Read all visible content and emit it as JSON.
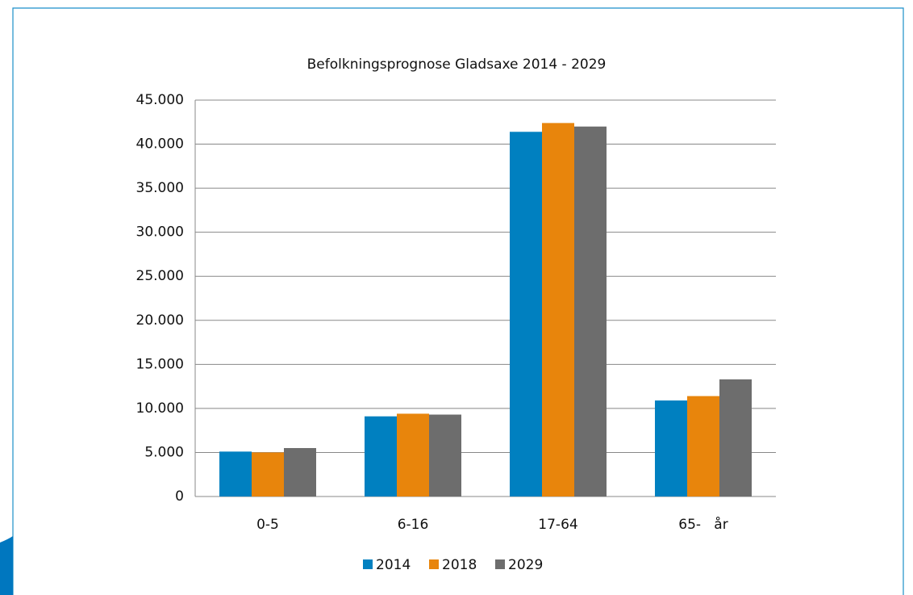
{
  "chart_data": {
    "type": "bar",
    "title": "Befolkningsprognose Gladsaxe 2014 - 2029",
    "categories": [
      "0-5",
      "6-16",
      "17-64",
      "65-   år"
    ],
    "series": [
      {
        "name": "2014",
        "color": "#0080c0",
        "values": [
          5100,
          9100,
          41400,
          10900
        ]
      },
      {
        "name": "2018",
        "color": "#e8850c",
        "values": [
          5000,
          9400,
          42400,
          11400
        ]
      },
      {
        "name": "2029",
        "color": "#6d6d6d",
        "values": [
          5500,
          9300,
          42000,
          13300
        ]
      }
    ],
    "ylim": [
      0,
      45000
    ],
    "yticks": [
      0,
      {
        "value": 5000,
        "label": "5.000"
      },
      {
        "value": 10000,
        "label": "10.000"
      },
      {
        "value": 15000,
        "label": "15.000"
      },
      {
        "value": 20000,
        "label": "20.000"
      },
      {
        "value": 25000,
        "label": "25.000"
      },
      {
        "value": 30000,
        "label": "30.000"
      },
      {
        "value": 35000,
        "label": "35.000"
      },
      {
        "value": 40000,
        "label": "40.000"
      },
      {
        "value": 45000,
        "label": "45.000"
      }
    ],
    "grid": true,
    "legend": "bottom"
  }
}
